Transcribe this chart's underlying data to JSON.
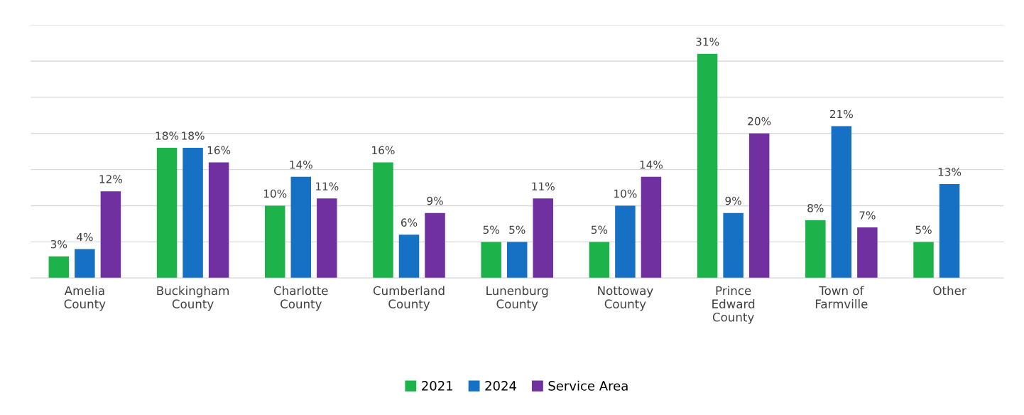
{
  "chart_data": {
    "type": "bar",
    "categories": [
      "Amelia\nCounty",
      "Buckingham\nCounty",
      "Charlotte\nCounty",
      "Cumberland\nCounty",
      "Lunenburg\nCounty",
      "Nottoway\nCounty",
      "Prince\nEdward\nCounty",
      "Town of\nFarmville",
      "Other"
    ],
    "series": [
      {
        "name": "2021",
        "color": "#1db34a",
        "values": [
          3,
          18,
          10,
          16,
          5,
          5,
          31,
          8,
          5
        ],
        "value_labels": [
          "3%",
          "18%",
          "10%",
          "16%",
          "5%",
          "5%",
          "31%",
          "8%",
          "5%"
        ]
      },
      {
        "name": "2024",
        "color": "#1670c4",
        "values": [
          4,
          18,
          14,
          6,
          5,
          10,
          9,
          21,
          13
        ],
        "value_labels": [
          "4%",
          "18%",
          "14%",
          "6%",
          "5%",
          "10%",
          "9%",
          "21%",
          "13%"
        ]
      },
      {
        "name": "Service Area",
        "color": "#7030a0",
        "values": [
          12,
          16,
          11,
          9,
          11,
          14,
          20,
          7,
          null
        ],
        "value_labels": [
          "12%",
          "16%",
          "11%",
          "9%",
          "11%",
          "14%",
          "20%",
          "7%",
          null
        ]
      }
    ],
    "ylim": [
      0,
      35
    ],
    "yticks": [
      {
        "value": 0,
        "label": null
      },
      {
        "value": 5,
        "label": null
      },
      {
        "value": 10,
        "label": null
      },
      {
        "value": 15,
        "label": null
      },
      {
        "value": 20,
        "label": null
      },
      {
        "value": 25,
        "label": null
      },
      {
        "value": 30,
        "label": null
      },
      {
        "value": 35,
        "label": null
      }
    ],
    "tick_labels": "x",
    "grid": "y",
    "legend": "bottom"
  }
}
